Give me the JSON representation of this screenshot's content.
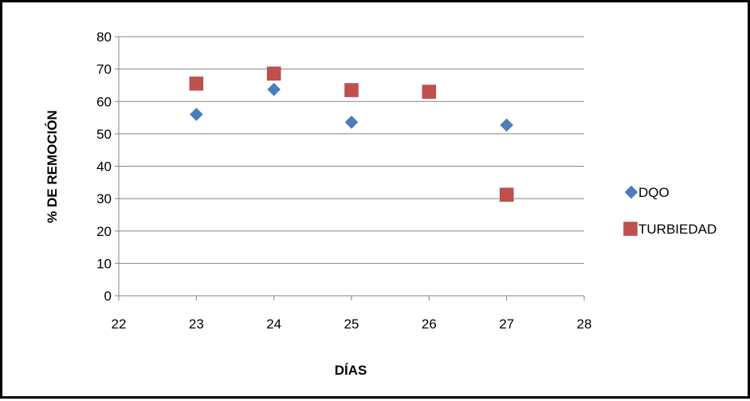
{
  "chart_data": {
    "type": "scatter",
    "title": "",
    "xlabel": "DÍAS",
    "ylabel": "% DE REMOCIÓN",
    "xlim": [
      22,
      28
    ],
    "ylim": [
      0,
      80
    ],
    "x_ticks": [
      22,
      23,
      24,
      25,
      26,
      27,
      28
    ],
    "y_ticks": [
      0,
      10,
      20,
      30,
      40,
      50,
      60,
      70,
      80
    ],
    "grid": "horizontal",
    "legend_position": "right",
    "series": [
      {
        "name": "DQO",
        "marker": "diamond",
        "color": "#4a7ebb",
        "points": [
          {
            "x": 23,
            "y": 56
          },
          {
            "x": 24,
            "y": 63.7
          },
          {
            "x": 25,
            "y": 53.6
          },
          {
            "x": 27,
            "y": 52.7
          }
        ]
      },
      {
        "name": "TURBIEDAD",
        "marker": "square",
        "color": "#c0504d",
        "points": [
          {
            "x": 23,
            "y": 65.5
          },
          {
            "x": 24,
            "y": 68.6
          },
          {
            "x": 25,
            "y": 63.5
          },
          {
            "x": 26,
            "y": 63
          },
          {
            "x": 27,
            "y": 31.2
          }
        ]
      }
    ]
  }
}
